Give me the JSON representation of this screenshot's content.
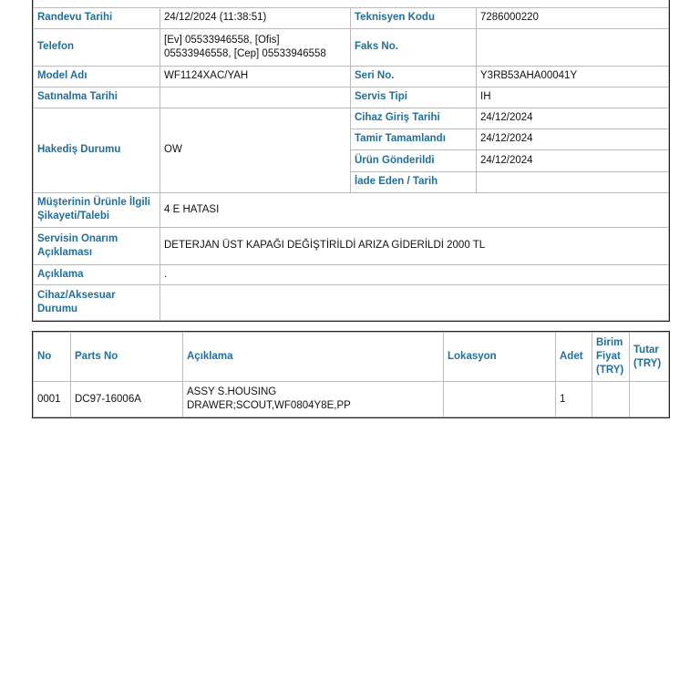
{
  "info": {
    "randevu_label": "Randevu Tarihi",
    "randevu_value": "24/12/2024 (11:38:51)",
    "teknisyen_label": "Teknisyen Kodu",
    "teknisyen_value": "7286000220",
    "telefon_label": "Telefon",
    "telefon_value": "[Ev] 05533946558, [Ofis] 05533946558, [Cep] 05533946558",
    "faks_label": "Faks No.",
    "faks_value": "",
    "model_label": "Model Adı",
    "model_value": "WF1124XAC/YAH",
    "seri_label": "Seri No.",
    "seri_value": "Y3RB53AHA00041Y",
    "satinalma_label": "Satınalma Tarihi",
    "satinalma_value": "",
    "servis_tipi_label": "Servis Tipi",
    "servis_tipi_value": "IH",
    "hakedis_label": "Hakediş Durumu",
    "hakedis_value": "OW",
    "giris_label": "Cihaz Giriş Tarihi",
    "giris_value": "24/12/2024",
    "tamir_label": "Tamir Tamamlandı",
    "tamir_value": "24/12/2024",
    "gonderildi_label": "Ürün Gönderildi",
    "gonderildi_value": "24/12/2024",
    "iade_label": "İade Eden / Tarih",
    "iade_value": "",
    "sikayet_label": "Müşterinin Ürünle İlgili Şikayeti/Talebi",
    "sikayet_value": "4 E HATASI",
    "onarim_label": "Servisin Onarım Açıklaması",
    "onarim_value": "DETERJAN  ÜST KAPAĞI DEĞİŞTİRİLDİ ARIZA GİDERİLDİ 2000 TL",
    "aciklama_label": "Açıklama",
    "aciklama_value": ".",
    "cihaz_label": "Cihaz/Aksesuar Durumu",
    "cihaz_value": ""
  },
  "parts": {
    "headers": [
      "No",
      "Parts No",
      "Açıklama",
      "Lokasyon",
      "Adet",
      "Birim Fiyat (TRY)",
      "Tutar (TRY)"
    ],
    "rows": [
      [
        "0001",
        "DC97-16006A",
        "ASSY S.HOUSING DRAWER;SCOUT,WF0804Y8E,PP",
        "",
        "1",
        "",
        ""
      ]
    ]
  }
}
